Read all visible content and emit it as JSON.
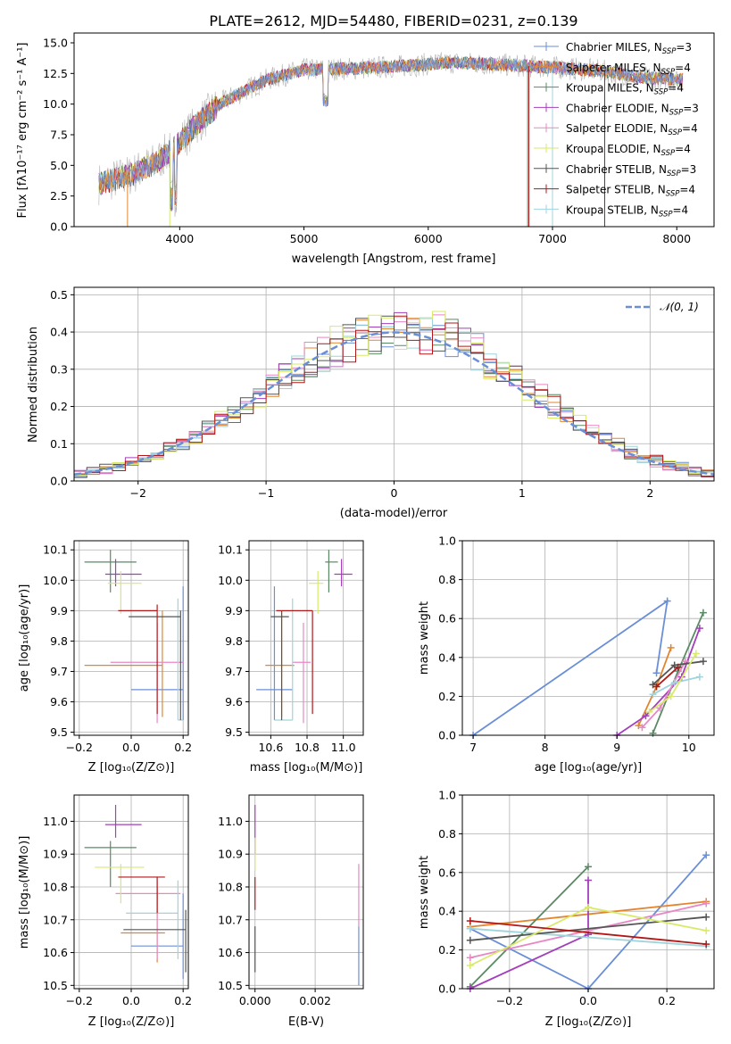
{
  "colors": [
    "#6a8fd6",
    "#e2852f",
    "#5a8a64",
    "#a43fbb",
    "#e887c4",
    "#9fd4dc",
    "#b3b3b3",
    "#555555",
    "#d9ea6a",
    "#b01818"
  ],
  "panel1": {
    "title": "PLATE=2612, MJD=54480, FIBERID=0231, z=0.139",
    "xlabel": "wavelength [Angstrom, rest frame]",
    "ylabel": "Flux [fλ10⁻¹⁷ erg cm⁻² s⁻¹ A⁻¹]",
    "xticks": [
      "4000",
      "5000",
      "6000",
      "7000",
      "8000"
    ],
    "yticks": [
      "0.0",
      "2.5",
      "5.0",
      "7.5",
      "10.0",
      "12.5",
      "15.0"
    ],
    "legend": [
      {
        "label": "Chabrier MILES, N",
        "sub": "SSP",
        "tail": "=3"
      },
      {
        "label": "Salpeter MILES, N",
        "sub": "SSP",
        "tail": "=4"
      },
      {
        "label": "Kroupa MILES, N",
        "sub": "SSP",
        "tail": "=4"
      },
      {
        "label": "Chabrier ELODIE, N",
        "sub": "SSP",
        "tail": "=3"
      },
      {
        "label": "Salpeter ELODIE, N",
        "sub": "SSP",
        "tail": "=4"
      },
      {
        "label": "Kroupa ELODIE, N",
        "sub": "SSP",
        "tail": "=4"
      },
      {
        "label": "Chabrier STELIB, N",
        "sub": "SSP",
        "tail": "=3"
      },
      {
        "label": "Salpeter STELIB, N",
        "sub": "SSP",
        "tail": "=4"
      },
      {
        "label": "Kroupa STELIB, N",
        "sub": "SSP",
        "tail": "=4"
      }
    ]
  },
  "panel2": {
    "xlabel": "(data-model)/error",
    "ylabel": "Normed distribution",
    "xticks": [
      "−2",
      "−1",
      "0",
      "1",
      "2"
    ],
    "yticks": [
      "0.0",
      "0.1",
      "0.2",
      "0.3",
      "0.4",
      "0.5"
    ],
    "legend": "𝒩(0, 1)"
  },
  "panel3": {
    "xlabel": "Z [log₁₀(Z/Z⊙)]",
    "ylabel": "age  [log₁₀(age/yr)]",
    "xticks": [
      "−0.2",
      "0.0",
      "0.2"
    ],
    "yticks": [
      "9.5",
      "9.6",
      "9.7",
      "9.8",
      "9.9",
      "10.0",
      "10.1"
    ]
  },
  "panel4": {
    "xlabel": "mass [log₁₀(M/M⊙)]",
    "xticks": [
      "10.6",
      "10.8",
      "11.0"
    ],
    "yticks": [
      "9.5",
      "9.6",
      "9.7",
      "9.8",
      "9.9",
      "10.0",
      "10.1"
    ]
  },
  "panel5": {
    "xlabel": "age  [log₁₀(age/yr)]",
    "ylabel": "mass weight",
    "xticks": [
      "7",
      "8",
      "9",
      "10"
    ],
    "yticks": [
      "0.0",
      "0.2",
      "0.4",
      "0.6",
      "0.8",
      "1.0"
    ]
  },
  "panel6": {
    "xlabel": "Z [log₁₀(Z/Z⊙)]",
    "ylabel": "mass [log₁₀(M/M⊙)]",
    "xticks": [
      "−0.2",
      "0.0",
      "0.2"
    ],
    "yticks": [
      "10.5",
      "10.6",
      "10.7",
      "10.8",
      "10.9",
      "11.0"
    ]
  },
  "panel7": {
    "xlabel": "E(B-V)",
    "xticks": [
      "0.000",
      "0.002"
    ],
    "yticks": [
      "10.5",
      "10.6",
      "10.7",
      "10.8",
      "10.9",
      "11.0"
    ]
  },
  "panel8": {
    "xlabel": "Z [log₁₀(Z/Z⊙)]",
    "ylabel": "mass weight",
    "xticks": [
      "−0.2",
      "0.0",
      "0.2"
    ],
    "yticks": [
      "0.0",
      "0.2",
      "0.4",
      "0.6",
      "0.8",
      "1.0"
    ]
  },
  "chart_data": [
    {
      "type": "line",
      "title": "PLATE=2612, MJD=54480, FIBERID=0231, z=0.139",
      "xlabel": "wavelength [Angstrom, rest frame]",
      "ylabel": "Flux [fλ10⁻¹⁷ erg cm⁻² s⁻¹ A⁻¹]",
      "xlim": [
        3150,
        8300
      ],
      "ylim": [
        0,
        15.8
      ],
      "legend_position": "upper right",
      "series": [
        {
          "name": "Chabrier MILES, N_SSP=3"
        },
        {
          "name": "Salpeter MILES, N_SSP=4"
        },
        {
          "name": "Kroupa MILES, N_SSP=4"
        },
        {
          "name": "Chabrier ELODIE, N_SSP=3"
        },
        {
          "name": "Salpeter ELODIE, N_SSP=4"
        },
        {
          "name": "Kroupa ELODIE, N_SSP=4"
        },
        {
          "name": "Chabrier STELIB, N_SSP=3"
        },
        {
          "name": "Salpeter STELIB, N_SSP=4"
        },
        {
          "name": "Kroupa STELIB, N_SSP=4"
        }
      ],
      "continuum": {
        "x": [
          3350,
          3600,
          3800,
          3950,
          4150,
          4350,
          4700,
          5000,
          5400,
          5800,
          6200,
          6600,
          7000,
          7400,
          7700,
          8050
        ],
        "y": [
          3.5,
          4.2,
          5.2,
          6.4,
          8.5,
          10.2,
          12.0,
          12.8,
          12.9,
          13.1,
          13.4,
          13.2,
          13.0,
          12.7,
          12.2,
          12.0
        ]
      }
    },
    {
      "type": "line",
      "xlabel": "(data-model)/error",
      "ylabel": "Normed distribution",
      "xlim": [
        -2.5,
        2.5
      ],
      "ylim": [
        0,
        0.52
      ],
      "gaussian": {
        "name": "𝒩(0, 1)",
        "mu": 0,
        "sigma": 1
      },
      "histogram_bin_width": 0.1
    },
    {
      "type": "scatter",
      "xlabel": "Z [log₁₀(Z/Z⊙)]",
      "ylabel": "age  [log₁₀(age/yr)]",
      "xlim": [
        -0.22,
        0.22
      ],
      "ylim": [
        9.49,
        10.13
      ],
      "points": [
        {
          "color": 0,
          "x": 0.2,
          "y": 9.64,
          "xerr": [
            0.2,
            0.0
          ],
          "yerr": [
            0.1,
            0.34
          ]
        },
        {
          "color": 1,
          "x": 0.12,
          "y": 9.72,
          "xerr": [
            0.3,
            0.0
          ],
          "yerr": [
            0.17,
            0.18
          ]
        },
        {
          "color": 2,
          "x": -0.08,
          "y": 10.06,
          "xerr": [
            0.1,
            0.1
          ],
          "yerr": [
            0.1,
            0.04
          ]
        },
        {
          "color": 3,
          "x": -0.06,
          "y": 10.02,
          "xerr": [
            0.04,
            0.1
          ],
          "yerr": [
            0.04,
            0.05
          ]
        },
        {
          "color": 4,
          "x": 0.1,
          "y": 9.73,
          "xerr": [
            0.18,
            0.1
          ],
          "yerr": [
            0.2,
            0.13
          ]
        },
        {
          "color": 5,
          "x": 0.18,
          "y": 9.54,
          "xerr": [
            0.0,
            0.02
          ],
          "yerr": [
            0.0,
            0.4
          ]
        },
        {
          "color": 7,
          "x": 0.19,
          "y": 9.88,
          "xerr": [
            0.2,
            0.0
          ],
          "yerr": [
            0.34,
            0.02
          ]
        },
        {
          "color": 8,
          "x": -0.04,
          "y": 9.99,
          "xerr": [
            0.05,
            0.08
          ],
          "yerr": [
            0.1,
            0.04
          ]
        },
        {
          "color": 9,
          "x": 0.1,
          "y": 9.9,
          "xerr": [
            0.15,
            0.0
          ],
          "yerr": [
            0.34,
            0.02
          ]
        }
      ]
    },
    {
      "type": "scatter",
      "xlabel": "mass [log₁₀(M/M⊙)]",
      "xlim": [
        10.48,
        11.11
      ],
      "ylim": [
        9.49,
        10.13
      ],
      "points": [
        {
          "color": 0,
          "x": 10.62,
          "y": 9.64,
          "xerr": [
            0.1,
            0.1
          ],
          "yerr": [
            0.1,
            0.34
          ]
        },
        {
          "color": 1,
          "x": 10.66,
          "y": 9.72,
          "xerr": [
            0.09,
            0.07
          ],
          "yerr": [
            0.17,
            0.18
          ]
        },
        {
          "color": 2,
          "x": 10.92,
          "y": 10.06,
          "xerr": [
            0.02,
            0.05
          ],
          "yerr": [
            0.1,
            0.04
          ]
        },
        {
          "color": 3,
          "x": 10.99,
          "y": 10.02,
          "xerr": [
            0.04,
            0.06
          ],
          "yerr": [
            0.04,
            0.05
          ]
        },
        {
          "color": 4,
          "x": 10.78,
          "y": 9.73,
          "xerr": [
            0.06,
            0.04
          ],
          "yerr": [
            0.2,
            0.13
          ]
        },
        {
          "color": 5,
          "x": 10.72,
          "y": 9.54,
          "xerr": [
            0.1,
            0.0
          ],
          "yerr": [
            0.0,
            0.4
          ]
        },
        {
          "color": 7,
          "x": 10.66,
          "y": 9.88,
          "xerr": [
            0.06,
            0.04
          ],
          "yerr": [
            0.34,
            0.02
          ]
        },
        {
          "color": 8,
          "x": 10.86,
          "y": 9.99,
          "xerr": [
            0.05,
            0.03
          ],
          "yerr": [
            0.1,
            0.04
          ]
        },
        {
          "color": 9,
          "x": 10.83,
          "y": 9.9,
          "xerr": [
            0.2,
            0.0
          ],
          "yerr": [
            0.34,
            0.0
          ]
        }
      ]
    },
    {
      "type": "line",
      "xlabel": "age  [log₁₀(age/yr)]",
      "ylabel": "mass weight",
      "xlim": [
        6.85,
        10.35
      ],
      "ylim": [
        0,
        1
      ],
      "series": [
        {
          "color": 0,
          "x": [
            7.0,
            9.7,
            9.55
          ],
          "y": [
            0.0,
            0.69,
            0.32
          ]
        },
        {
          "color": 1,
          "x": [
            9.3,
            9.55,
            9.75
          ],
          "y": [
            0.05,
            0.25,
            0.45
          ]
        },
        {
          "color": 2,
          "x": [
            9.5,
            9.85,
            10.2
          ],
          "y": [
            0.01,
            0.33,
            0.63
          ]
        },
        {
          "color": 3,
          "x": [
            9.0,
            9.4,
            9.9,
            10.15
          ],
          "y": [
            0.0,
            0.1,
            0.3,
            0.55
          ]
        },
        {
          "color": 4,
          "x": [
            9.35,
            9.6,
            9.95
          ],
          "y": [
            0.04,
            0.14,
            0.38
          ]
        },
        {
          "color": 5,
          "x": [
            9.5,
            9.8,
            10.15
          ],
          "y": [
            0.21,
            0.27,
            0.3
          ]
        },
        {
          "color": 7,
          "x": [
            9.5,
            9.8,
            10.2
          ],
          "y": [
            0.26,
            0.36,
            0.38
          ]
        },
        {
          "color": 8,
          "x": [
            9.45,
            9.75,
            10.1
          ],
          "y": [
            0.12,
            0.2,
            0.42
          ]
        },
        {
          "color": 9,
          "x": [
            9.55,
            9.85
          ],
          "y": [
            0.25,
            0.35
          ]
        }
      ]
    },
    {
      "type": "scatter",
      "xlabel": "Z [log₁₀(Z/Z⊙)]",
      "ylabel": "mass [log₁₀(M/M⊙)]",
      "xlim": [
        -0.22,
        0.22
      ],
      "ylim": [
        10.49,
        11.08
      ],
      "points": [
        {
          "color": 0,
          "x": 0.2,
          "y": 10.62,
          "xerr": [
            0.2,
            0.0
          ],
          "yerr": [
            0.1,
            0.16
          ]
        },
        {
          "color": 1,
          "x": 0.1,
          "y": 10.66,
          "xerr": [
            0.14,
            0.03
          ],
          "yerr": [
            0.09,
            0.14
          ]
        },
        {
          "color": 2,
          "x": -0.08,
          "y": 10.92,
          "xerr": [
            0.1,
            0.1
          ],
          "yerr": [
            0.12,
            0.02
          ]
        },
        {
          "color": 3,
          "x": -0.06,
          "y": 10.99,
          "xerr": [
            0.04,
            0.1
          ],
          "yerr": [
            0.04,
            0.06
          ]
        },
        {
          "color": 4,
          "x": 0.1,
          "y": 10.78,
          "xerr": [
            0.16,
            0.09
          ],
          "yerr": [
            0.2,
            0.04
          ]
        },
        {
          "color": 5,
          "x": 0.18,
          "y": 10.72,
          "xerr": [
            0.2,
            0.0
          ],
          "yerr": [
            0.14,
            0.1
          ]
        },
        {
          "color": 7,
          "x": 0.21,
          "y": 10.67,
          "xerr": [
            0.24,
            0.0
          ],
          "yerr": [
            0.13,
            0.06
          ]
        },
        {
          "color": 8,
          "x": -0.04,
          "y": 10.86,
          "xerr": [
            0.1,
            0.09
          ],
          "yerr": [
            0.11,
            0.01
          ]
        },
        {
          "color": 9,
          "x": 0.1,
          "y": 10.83,
          "xerr": [
            0.15,
            0.03
          ],
          "yerr": [
            0.11,
            0.0
          ]
        }
      ]
    },
    {
      "type": "scatter",
      "xlabel": "E(B-V)",
      "xlim": [
        -0.0002,
        0.0036
      ],
      "ylim": [
        10.49,
        11.08
      ],
      "points": [
        {
          "color": 0,
          "x": 0.00345,
          "y": 10.6,
          "yerr": [
            0.1,
            0.08
          ]
        },
        {
          "color": 3,
          "x": 0.0,
          "y": 10.98,
          "yerr": [
            0.08,
            0.07
          ]
        },
        {
          "color": 4,
          "x": 0.00345,
          "y": 10.78,
          "yerr": [
            0.1,
            0.09
          ]
        },
        {
          "color": 7,
          "x": 0.0,
          "y": 10.6,
          "yerr": [
            0.06,
            0.08
          ]
        },
        {
          "color": 8,
          "x": 0.0,
          "y": 10.9,
          "yerr": [
            0.05,
            0.05
          ]
        },
        {
          "color": 9,
          "x": 0.0,
          "y": 10.78,
          "yerr": [
            0.05,
            0.05
          ]
        }
      ]
    },
    {
      "type": "line",
      "xlabel": "Z [log₁₀(Z/Z⊙)]",
      "ylabel": "mass weight",
      "xlim": [
        -0.32,
        0.32
      ],
      "ylim": [
        0,
        1
      ],
      "series": [
        {
          "color": 0,
          "x": [
            -0.3,
            0.0,
            0.3
          ],
          "y": [
            0.31,
            0.0,
            0.69
          ]
        },
        {
          "color": 1,
          "x": [
            -0.3,
            0.3
          ],
          "y": [
            0.32,
            0.45
          ]
        },
        {
          "color": 2,
          "x": [
            -0.3,
            0.0
          ],
          "y": [
            0.01,
            0.63
          ]
        },
        {
          "color": 3,
          "x": [
            -0.3,
            0.0,
            0.0
          ],
          "y": [
            0.0,
            0.28,
            0.56
          ]
        },
        {
          "color": 4,
          "x": [
            -0.3,
            0.3
          ],
          "y": [
            0.16,
            0.44
          ]
        },
        {
          "color": 5,
          "x": [
            -0.3,
            0.3
          ],
          "y": [
            0.31,
            0.22
          ]
        },
        {
          "color": 7,
          "x": [
            -0.3,
            0.3
          ],
          "y": [
            0.25,
            0.37
          ]
        },
        {
          "color": 8,
          "x": [
            -0.3,
            0.0,
            0.3
          ],
          "y": [
            0.12,
            0.42,
            0.3
          ]
        },
        {
          "color": 9,
          "x": [
            -0.3,
            0.3
          ],
          "y": [
            0.35,
            0.23
          ]
        }
      ]
    }
  ]
}
